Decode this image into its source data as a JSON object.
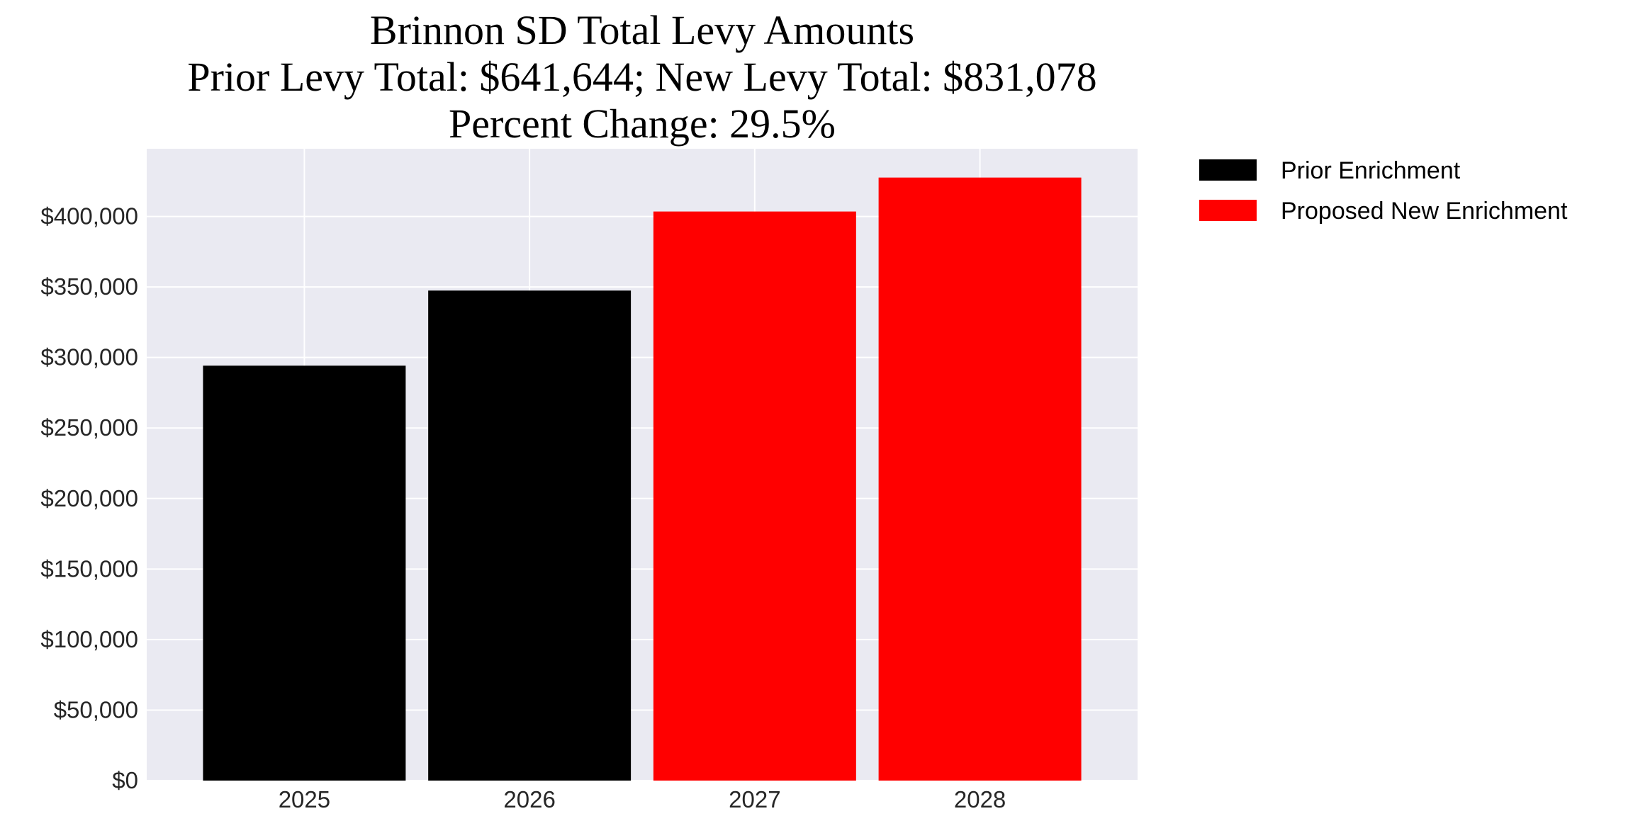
{
  "chart_data": {
    "type": "bar",
    "title_lines": [
      "Brinnon SD Total Levy Amounts",
      "Prior Levy Total:  $641,644; New Levy Total: $831,078",
      "Percent Change: 29.5%"
    ],
    "xlabel": "",
    "ylabel": "",
    "categories": [
      "2025",
      "2026",
      "2027",
      "2028"
    ],
    "values": [
      294200,
      347444,
      403500,
      427578
    ],
    "bar_series": [
      "Prior Enrichment",
      "Prior Enrichment",
      "Proposed New Enrichment",
      "Proposed New Enrichment"
    ],
    "series": [
      {
        "name": "Prior Enrichment",
        "color": "#000000",
        "categories": [
          "2025",
          "2026"
        ]
      },
      {
        "name": "Proposed New Enrichment",
        "color": "#ff0000",
        "categories": [
          "2027",
          "2028"
        ]
      }
    ],
    "ylim": [
      0,
      448000
    ],
    "yticks": [
      0,
      50000,
      100000,
      150000,
      200000,
      250000,
      300000,
      350000,
      400000
    ],
    "ytick_labels": [
      "$0",
      "$50,000",
      "$100,000",
      "$150,000",
      "$200,000",
      "$250,000",
      "$300,000",
      "$350,000",
      "$400,000"
    ],
    "grid": true,
    "background": "#eaeaf2",
    "legend_position": "outside-top-right"
  }
}
